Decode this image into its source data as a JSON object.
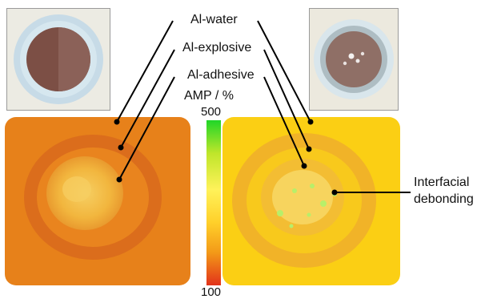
{
  "labels": {
    "al_water": "Al-water",
    "al_explosive": "Al-explosive",
    "al_adhesive": "Al-adhesive",
    "amp_title": "AMP / %",
    "interfacial_1": "Interfacial",
    "interfacial_2": "debonding"
  },
  "scale": {
    "max": "500",
    "min": "100",
    "colors": [
      "#1fd628",
      "#bfe62a",
      "#fff25a",
      "#ffd02a",
      "#f39a18",
      "#e2321a"
    ]
  },
  "colors": {
    "left_map_bg": "#e7811a",
    "left_ring": "#d9661b",
    "left_core": "#f3c047",
    "right_map_bg": "#fbcf14",
    "right_ring": "#e9a526",
    "right_core": "#f7d45e",
    "specks": "#b8ef6a"
  }
}
